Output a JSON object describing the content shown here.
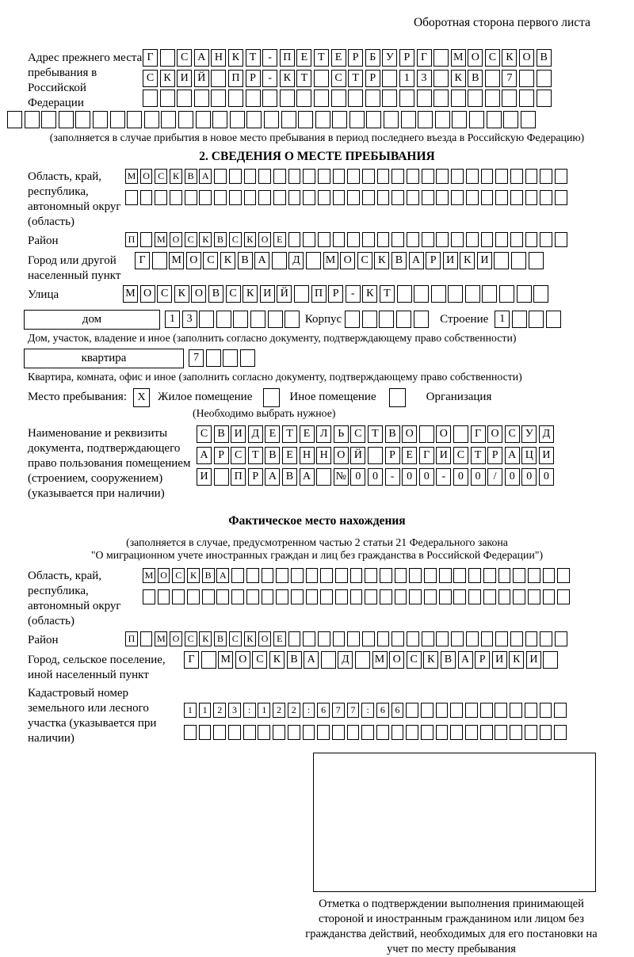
{
  "page": {
    "header_note": "Оборотная сторона первого листа"
  },
  "prev_address": {
    "label": "Адрес прежнего места пребывания в Российской Федерации",
    "rows": [
      "Г САНКТ-ПЕТЕРБУРГ МОСКОВ",
      "СКИЙ ПР-КТ СТР 13 КВ 7  ",
      "                        "
    ],
    "full_row": "                               ",
    "note": "(заполняется в случае прибытия в новое место пребывания в период последнего въезда в Российскую Федерацию)"
  },
  "section2": {
    "title": "2. СВЕДЕНИЯ О МЕСТЕ ПРЕБЫВАНИЯ",
    "region_label": "Область, край, республика, автономный округ (область)",
    "region_rows": [
      "МОСКВА                        ",
      "                              "
    ],
    "district_label": "Район",
    "district_row": "П МОСКВСКОЕ                   ",
    "city_label": "Город или другой населенный пункт",
    "city_row": "Г МОСКВА Д МОСКВАРИКИ   ",
    "street_label": "Улица",
    "street_row": "МОСКОВСКИЙ ПР-КТ         ",
    "house_box_label": "дом",
    "house_cells": "13      ",
    "korpus_label": "Корпус",
    "korpus_cells": "     ",
    "stroenie_label": "Строение",
    "stroenie_cells": "1   ",
    "house_note": "Дом, участок, владение и иное (заполнить согласно документу, подтверждающему право собственности)",
    "apt_box_label": "квартира",
    "apt_cells": "7   ",
    "apt_note": "Квартира, комната, офис и иное (заполнить согласно документу, подтверждающему право собственности)",
    "stay_type_label": "Место пребывания:",
    "stay_options": [
      {
        "label": "Жилое помещение",
        "value": "X"
      },
      {
        "label": "Иное помещение",
        "value": ""
      },
      {
        "label": "Организация",
        "value": ""
      }
    ],
    "stay_note": "(Необходимо выбрать нужное)",
    "doc_label": "Наименование и реквизиты документа, подтверждающего право пользования помещением (строением, сооружением) (указывается при наличии)",
    "doc_rows": [
      "СВИДЕТЕЛЬСТВО О ГОСУД",
      "АРСТВЕННОЙ РЕГИСТРАЦИ",
      "И ПРАВА №00-00-00/000"
    ]
  },
  "actual_location": {
    "title": "Фактическое место нахождения",
    "note1": "(заполняется в случае, предусмотренном частью 2 статьи 21 Федерального закона",
    "note2": "\"О миграционном учете иностранных граждан и лиц без гражданства в Российской Федерации\")",
    "region_label": "Область, край, республика, автономный округ (область)",
    "region_rows": [
      "МОСКВА                       ",
      "                             "
    ],
    "district_label": "Район",
    "district_row": "П МОСКВСКОЕ                   ",
    "city_label": "Город, сельское поселение, иной населенный пункт",
    "city_row": "Г МОСКВА Д МОСКВАРИКИ ",
    "cadastre_label": "Кадастровый номер земельного или лесного участка (указывается при наличии)",
    "cadastre_rows": [
      "1123:122:677:66           ",
      "                          "
    ]
  },
  "confirmation": {
    "caption": "Отметка о подтверждении выполнения принимающей стороной и иностранным гражданином или лицом без гражданства действий, необходимых для его постановки на учет по месту пребывания"
  }
}
